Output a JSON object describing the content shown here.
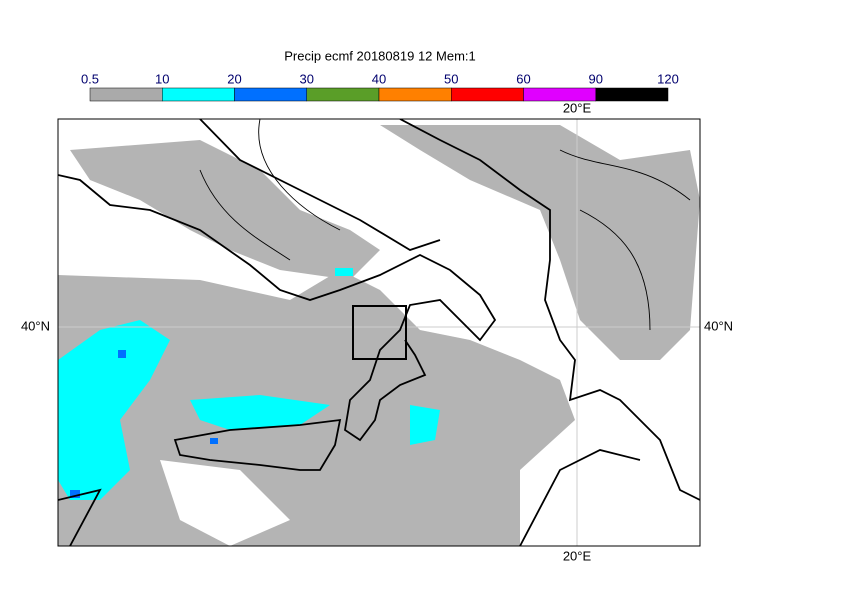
{
  "title": "Precip ecmf 20180819 12 Mem:1",
  "colorbar": {
    "ticks": [
      0.5,
      10,
      20,
      30,
      40,
      50,
      60,
      90,
      120
    ],
    "colors": [
      "#aaaaaa",
      "#00ffff",
      "#0070ff",
      "#5a9e28",
      "#ff8000",
      "#ff0000",
      "#e000ff",
      "#000000"
    ]
  },
  "map": {
    "lon_label_top": "20°E",
    "lon_label_bottom": "20°E",
    "lat_label_left": "40°N",
    "lat_label_right": "40°N"
  }
}
